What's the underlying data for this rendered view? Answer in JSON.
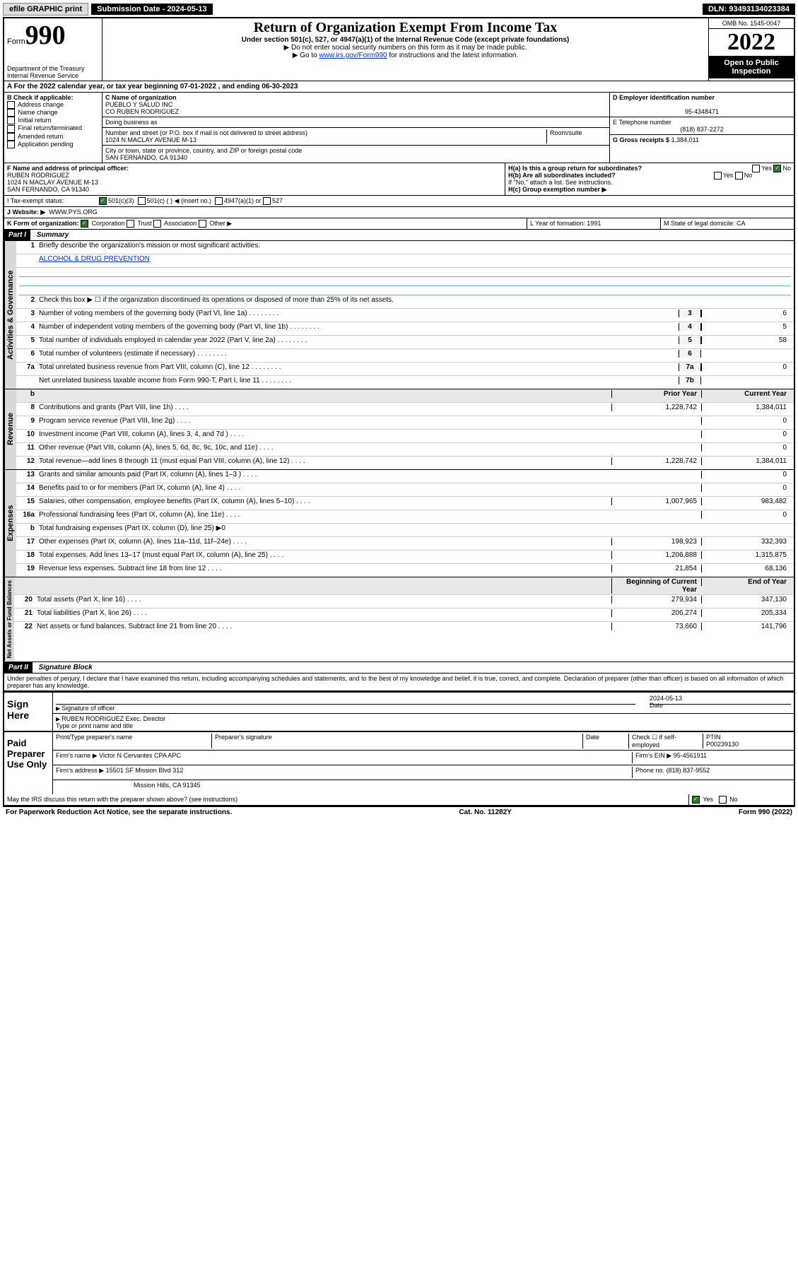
{
  "topbar": {
    "efile": "efile GRAPHIC print",
    "submission_label": "Submission Date - 2024-05-13",
    "dln": "DLN: 93493134023384"
  },
  "header": {
    "form_label": "Form",
    "form_number": "990",
    "dept": "Department of the Treasury",
    "irs": "Internal Revenue Service",
    "title": "Return of Organization Exempt From Income Tax",
    "subtitle": "Under section 501(c), 527, or 4947(a)(1) of the Internal Revenue Code (except private foundations)",
    "note1": "▶ Do not enter social security numbers on this form as it may be made public.",
    "note2_pre": "▶ Go to ",
    "note2_link": "www.irs.gov/Form990",
    "note2_post": " for instructions and the latest information.",
    "omb": "OMB No. 1545-0047",
    "year": "2022",
    "open": "Open to Public Inspection"
  },
  "section_a": {
    "label": "A For the 2022 calendar year, or tax year beginning 07-01-2022    , and ending 06-30-2023"
  },
  "section_b": {
    "label": "B Check if applicable:",
    "opts": [
      "Address change",
      "Name change",
      "Initial return",
      "Final return/terminated",
      "Amended return",
      "Application pending"
    ]
  },
  "section_c": {
    "name_label": "C Name of organization",
    "name1": "PUEBLO Y SALUD INC",
    "name2": "CO RUBEN RODRIGUEZ",
    "dba_label": "Doing business as",
    "street_label": "Number and street (or P.O. box if mail is not delivered to street address)",
    "street": "1024 N MACLAY AVENUE M-13",
    "room_label": "Room/suite",
    "city_label": "City or town, state or province, country, and ZIP or foreign postal code",
    "city": "SAN FERNANDO, CA  91340"
  },
  "section_d": {
    "label": "D Employer identification number",
    "value": "95-4348471"
  },
  "section_e": {
    "label": "E Telephone number",
    "value": "(818) 837-2272"
  },
  "section_g": {
    "label": "G Gross receipts $",
    "value": "1,384,011"
  },
  "section_f": {
    "label": "F Name and address of principal officer:",
    "l1": "RUBEN RODRIGUEZ",
    "l2": "1024 N MACLAY AVENUE M-13",
    "l3": "SAN FERNANDO, CA  91340"
  },
  "section_h": {
    "ha": "H(a)  Is this a group return for subordinates?",
    "hb": "H(b)  Are all subordinates included?",
    "hb_note": "If \"No,\" attach a list. See instructions.",
    "hc": "H(c)  Group exemption number ▶",
    "yes": "Yes",
    "no": "No"
  },
  "section_i": {
    "label": "I     Tax-exempt status:",
    "opt1": "501(c)(3)",
    "opt2": "501(c) (  ) ◀ (insert no.)",
    "opt3": "4947(a)(1) or",
    "opt4": "527"
  },
  "section_j": {
    "label": "J    Website: ▶",
    "value": "WWW.PYS.ORG"
  },
  "section_k": {
    "label": "K Form of organization:",
    "o1": "Corporation",
    "o2": "Trust",
    "o3": "Association",
    "o4": "Other ▶"
  },
  "section_l": {
    "label": "L Year of formation: 1991"
  },
  "section_m": {
    "label": "M State of legal domicile: CA"
  },
  "part1": {
    "hdr": "Part I",
    "title": "Summary",
    "l1": "Briefly describe the organization's mission or most significant activities:",
    "l1_val": "ALCOHOL & DRUG PREVENTION",
    "l2": "Check this box ▶ ☐  if the organization discontinued its operations or disposed of more than 25% of its net assets.",
    "lines": [
      {
        "n": "3",
        "t": "Number of voting members of the governing body (Part VI, line 1a)",
        "box": "3",
        "v": "6"
      },
      {
        "n": "4",
        "t": "Number of independent voting members of the governing body (Part VI, line 1b)",
        "box": "4",
        "v": "5"
      },
      {
        "n": "5",
        "t": "Total number of individuals employed in calendar year 2022 (Part V, line 2a)",
        "box": "5",
        "v": "58"
      },
      {
        "n": "6",
        "t": "Total number of volunteers (estimate if necessary)",
        "box": "6",
        "v": ""
      },
      {
        "n": "7a",
        "t": "Total unrelated business revenue from Part VIII, column (C), line 12",
        "box": "7a",
        "v": "0"
      },
      {
        "n": "",
        "t": "Net unrelated business taxable income from Form 990-T, Part I, line 11",
        "box": "7b",
        "v": ""
      }
    ],
    "col_prior": "Prior Year",
    "col_current": "Current Year",
    "rev": [
      {
        "n": "8",
        "t": "Contributions and grants (Part VIII, line 1h)",
        "p": "1,228,742",
        "c": "1,384,011"
      },
      {
        "n": "9",
        "t": "Program service revenue (Part VIII, line 2g)",
        "p": "",
        "c": "0"
      },
      {
        "n": "10",
        "t": "Investment income (Part VIII, column (A), lines 3, 4, and 7d )",
        "p": "",
        "c": "0"
      },
      {
        "n": "11",
        "t": "Other revenue (Part VIII, column (A), lines 5, 6d, 8c, 9c, 10c, and 11e)",
        "p": "",
        "c": "0"
      },
      {
        "n": "12",
        "t": "Total revenue—add lines 8 through 11 (must equal Part VIII, column (A), line 12)",
        "p": "1,228,742",
        "c": "1,384,011"
      }
    ],
    "exp": [
      {
        "n": "13",
        "t": "Grants and similar amounts paid (Part IX, column (A), lines 1–3 )",
        "p": "",
        "c": "0"
      },
      {
        "n": "14",
        "t": "Benefits paid to or for members (Part IX, column (A), line 4)",
        "p": "",
        "c": "0"
      },
      {
        "n": "15",
        "t": "Salaries, other compensation, employee benefits (Part IX, column (A), lines 5–10)",
        "p": "1,007,965",
        "c": "983,482"
      },
      {
        "n": "16a",
        "t": "Professional fundraising fees (Part IX, column (A), line 11e)",
        "p": "",
        "c": "0"
      },
      {
        "n": "b",
        "t": "Total fundraising expenses (Part IX, column (D), line 25) ▶0",
        "p": "—",
        "c": "—"
      },
      {
        "n": "17",
        "t": "Other expenses (Part IX, column (A), lines 11a–11d, 11f–24e)",
        "p": "198,923",
        "c": "332,393"
      },
      {
        "n": "18",
        "t": "Total expenses. Add lines 13–17 (must equal Part IX, column (A), line 25)",
        "p": "1,206,888",
        "c": "1,315,875"
      },
      {
        "n": "19",
        "t": "Revenue less expenses. Subtract line 18 from line 12",
        "p": "21,854",
        "c": "68,136"
      }
    ],
    "col_begin": "Beginning of Current Year",
    "col_end": "End of Year",
    "bal": [
      {
        "n": "20",
        "t": "Total assets (Part X, line 16)",
        "p": "279,934",
        "c": "347,130"
      },
      {
        "n": "21",
        "t": "Total liabilities (Part X, line 26)",
        "p": "206,274",
        "c": "205,334"
      },
      {
        "n": "22",
        "t": "Net assets or fund balances. Subtract line 21 from line 20",
        "p": "73,660",
        "c": "141,796"
      }
    ]
  },
  "vert": {
    "ag": "Activities & Governance",
    "rev": "Revenue",
    "exp": "Expenses",
    "bal": "Net Assets or Fund Balances"
  },
  "part2": {
    "hdr": "Part II",
    "title": "Signature Block",
    "decl": "Under penalties of perjury, I declare that I have examined this return, including accompanying schedules and statements, and to the best of my knowledge and belief, it is true, correct, and complete. Declaration of preparer (other than officer) is based on all information of which preparer has any knowledge."
  },
  "sign": {
    "here": "Sign Here",
    "sig_officer": "Signature of officer",
    "date_label": "Date",
    "date": "2024-05-13",
    "name": "RUBEN RODRIGUEZ  Exec. Director",
    "name_label": "Type or print name and title"
  },
  "preparer": {
    "title": "Paid Preparer Use Only",
    "h1": "Print/Type preparer's name",
    "h2": "Preparer's signature",
    "h3": "Date",
    "chk": "Check ☐ if self-employed",
    "ptin_label": "PTIN",
    "ptin": "P00239130",
    "firm_name_label": "Firm's name   ▶",
    "firm_name": "Victor N Cervantes CPA APC",
    "firm_ein_label": "Firm's EIN ▶",
    "firm_ein": "95-4561911",
    "firm_addr_label": "Firm's address ▶",
    "firm_addr1": "15501 SF Mission Blvd 312",
    "firm_addr2": "Mission Hills, CA  91345",
    "phone_label": "Phone no.",
    "phone": "(818) 837-9552"
  },
  "footer": {
    "discuss": "May the IRS discuss this return with the preparer shown above? (see instructions)",
    "yes": "Yes",
    "no": "No",
    "paperwork": "For Paperwork Reduction Act Notice, see the separate instructions.",
    "cat": "Cat. No. 11282Y",
    "form": "Form 990 (2022)"
  }
}
